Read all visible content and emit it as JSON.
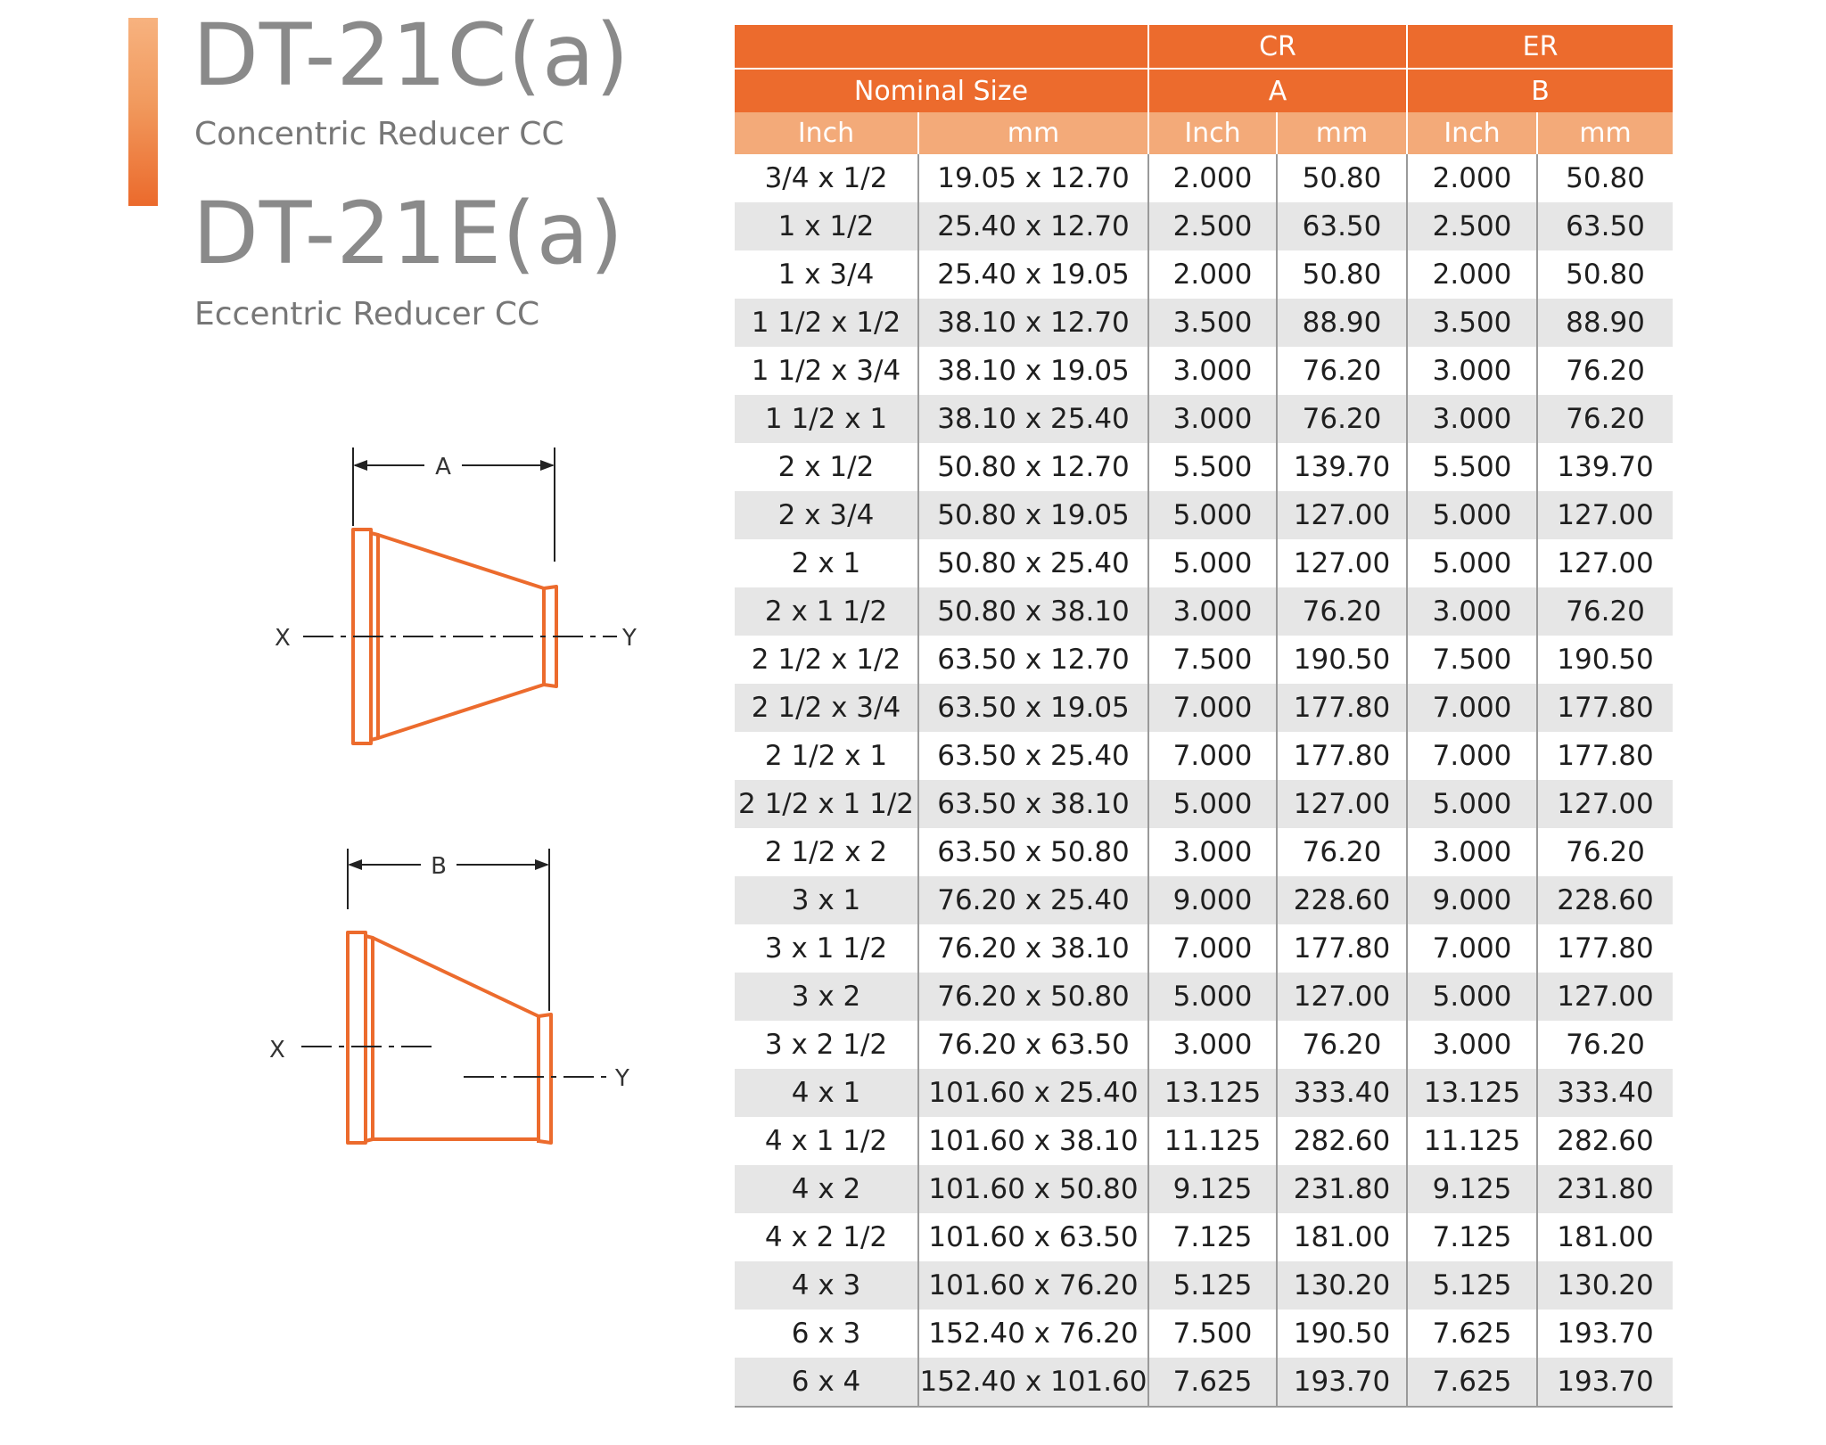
{
  "header": {
    "code_concentric": "DT-21C(a)",
    "desc_concentric": "Concentric Reducer CC",
    "code_eccentric": "DT-21E(a)",
    "desc_eccentric": "Eccentric Reducer CC"
  },
  "drawings": {
    "concentric": {
      "dim_label": "A",
      "left_axis": "X",
      "right_axis": "Y"
    },
    "eccentric": {
      "dim_label": "B",
      "left_axis": "X",
      "right_axis": "Y"
    }
  },
  "table": {
    "group_cr": "CR",
    "group_er": "ER",
    "nominal_size": "Nominal Size",
    "dim_a": "A",
    "dim_b": "B",
    "col_inch": "Inch",
    "col_mm": "mm",
    "rows": [
      [
        "3/4 x 1/2",
        "19.05 x 12.70",
        "2.000",
        "50.80",
        "2.000",
        "50.80"
      ],
      [
        "1 x 1/2",
        "25.40 x 12.70",
        "2.500",
        "63.50",
        "2.500",
        "63.50"
      ],
      [
        "1 x 3/4",
        "25.40 x 19.05",
        "2.000",
        "50.80",
        "2.000",
        "50.80"
      ],
      [
        "1 1/2 x 1/2",
        "38.10 x 12.70",
        "3.500",
        "88.90",
        "3.500",
        "88.90"
      ],
      [
        "1 1/2 x 3/4",
        "38.10 x 19.05",
        "3.000",
        "76.20",
        "3.000",
        "76.20"
      ],
      [
        "1 1/2 x 1",
        "38.10 x 25.40",
        "3.000",
        "76.20",
        "3.000",
        "76.20"
      ],
      [
        "2 x 1/2",
        "50.80 x 12.70",
        "5.500",
        "139.70",
        "5.500",
        "139.70"
      ],
      [
        "2 x 3/4",
        "50.80 x 19.05",
        "5.000",
        "127.00",
        "5.000",
        "127.00"
      ],
      [
        "2  x 1",
        "50.80 x 25.40",
        "5.000",
        "127.00",
        "5.000",
        "127.00"
      ],
      [
        "2  x 1 1/2",
        "50.80 x 38.10",
        "3.000",
        "76.20",
        "3.000",
        "76.20"
      ],
      [
        "2 1/2 x 1/2",
        "63.50 x 12.70",
        "7.500",
        "190.50",
        "7.500",
        "190.50"
      ],
      [
        "2 1/2 x 3/4",
        "63.50 x 19.05",
        "7.000",
        "177.80",
        "7.000",
        "177.80"
      ],
      [
        "2 1/2 x 1",
        "63.50 x 25.40",
        "7.000",
        "177.80",
        "7.000",
        "177.80"
      ],
      [
        "2 1/2 x 1 1/2",
        "63.50 x 38.10",
        "5.000",
        "127.00",
        "5.000",
        "127.00"
      ],
      [
        "2 1/2 x 2",
        "63.50 x 50.80",
        "3.000",
        "76.20",
        "3.000",
        "76.20"
      ],
      [
        "3 x 1",
        "76.20 x 25.40",
        "9.000",
        "228.60",
        "9.000",
        "228.60"
      ],
      [
        "3 x 1 1/2",
        "76.20 x 38.10",
        "7.000",
        "177.80",
        "7.000",
        "177.80"
      ],
      [
        "3 x 2",
        "76.20 x 50.80",
        "5.000",
        "127.00",
        "5.000",
        "127.00"
      ],
      [
        "3 x 2 1/2",
        "76.20 x 63.50",
        "3.000",
        "76.20",
        "3.000",
        "76.20"
      ],
      [
        "4 x 1",
        "101.60 x 25.40",
        "13.125",
        "333.40",
        "13.125",
        "333.40"
      ],
      [
        "4 x 1 1/2",
        "101.60 x 38.10",
        "11.125",
        "282.60",
        "11.125",
        "282.60"
      ],
      [
        "4 x 2",
        "101.60 x 50.80",
        "9.125",
        "231.80",
        "9.125",
        "231.80"
      ],
      [
        "4 x 2 1/2",
        "101.60 x 63.50",
        "7.125",
        "181.00",
        "7.125",
        "181.00"
      ],
      [
        "4 x 3",
        "101.60 x 76.20",
        "5.125",
        "130.20",
        "5.125",
        "130.20"
      ],
      [
        "6 x 3",
        "152.40 x 76.20",
        "7.500",
        "190.50",
        "7.625",
        "193.70"
      ],
      [
        "6 x 4",
        "152.40 x 101.60",
        "7.625",
        "193.70",
        "7.625",
        "193.70"
      ]
    ]
  },
  "colors": {
    "accent_orange": "#ec6b2d",
    "header_light": "#f3aa79",
    "title_gray": "#8a8a8a",
    "row_stripe": "#e6e6e6"
  }
}
